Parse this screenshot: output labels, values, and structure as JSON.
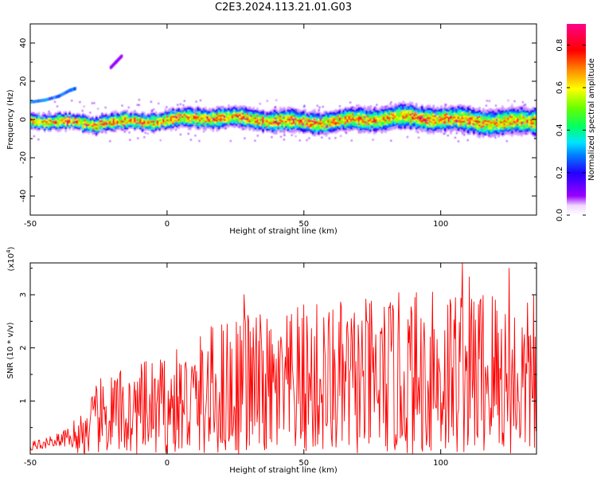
{
  "title": "C2E3.2024.113.21.01.G03",
  "chart_data": [
    {
      "type": "heatmap",
      "xlabel": "Height of straight line (km)",
      "ylabel": "Frequency (Hz)",
      "xlim": [
        -50,
        135
      ],
      "ylim": [
        -50,
        50
      ],
      "xticks": [
        -50,
        0,
        50,
        100
      ],
      "yticks": [
        -40,
        -20,
        0,
        20,
        40
      ],
      "colorbar": {
        "label": "Normalized spectral amplitude",
        "range": [
          0.0,
          0.9
        ],
        "ticks": [
          0.0,
          0.2,
          0.4,
          0.6,
          0.8
        ]
      },
      "features": [
        {
          "name": "main-band",
          "x_range": [
            -50,
            135
          ],
          "freq_center": 0,
          "width_hz": 8
        },
        {
          "name": "upper-trace",
          "x": [
            -50,
            -45,
            -40,
            -36,
            -34
          ],
          "freq": [
            9,
            10,
            12,
            15,
            16
          ]
        },
        {
          "name": "faint-trace",
          "x": [
            -21,
            -19,
            -17
          ],
          "freq": [
            27,
            30,
            33
          ]
        }
      ]
    },
    {
      "type": "line",
      "xlabel": "Height of straight line (km)",
      "ylabel": "SNR (10 * v/v)",
      "y_scale_label": "(x10",
      "y_scale_exp": "4",
      "y_scale_close": ")",
      "xlim": [
        -50,
        135
      ],
      "ylim": [
        0,
        3.6
      ],
      "xticks": [
        -50,
        0,
        50,
        100
      ],
      "yticks": [
        1,
        2,
        3
      ],
      "color": "#ff0000",
      "envelope": {
        "x": [
          -50,
          -40,
          -35,
          -30,
          -25,
          -20,
          -10,
          0,
          10,
          20,
          30,
          40,
          50,
          60,
          70,
          80,
          90,
          100,
          110,
          120,
          135
        ],
        "y": [
          0.28,
          0.5,
          0.65,
          0.9,
          1.4,
          1.6,
          1.7,
          1.9,
          2.2,
          2.6,
          2.8,
          2.5,
          2.9,
          2.9,
          2.9,
          3.0,
          3.1,
          3.2,
          3.4,
          3.3,
          2.8
        ]
      },
      "peaks": [
        {
          "x": 108,
          "y": 3.6
        },
        {
          "x": 125,
          "y": 3.5
        },
        {
          "x": 28,
          "y": 3.0
        },
        {
          "x": 97,
          "y": 3.05
        },
        {
          "x": 134,
          "y": 3.0
        }
      ]
    }
  ]
}
